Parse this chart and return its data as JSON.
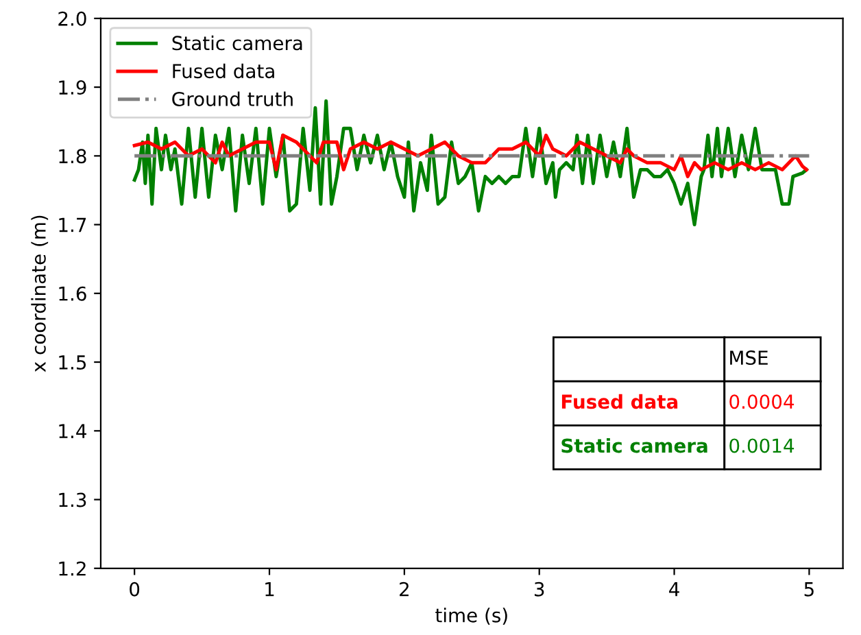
{
  "chart_data": {
    "type": "line",
    "xlabel": "time (s)",
    "ylabel": "x coordinate (m)",
    "xlim": [
      -0.25,
      5.25
    ],
    "ylim": [
      1.2,
      2.0
    ],
    "xticks": [
      0,
      1,
      2,
      3,
      4,
      5
    ],
    "yticks": [
      {
        "value": 1.2,
        "label": "1.2"
      },
      {
        "value": 1.3,
        "label": "1.3"
      },
      {
        "value": 1.4,
        "label": "1.4"
      },
      {
        "value": 1.5,
        "label": "1.5"
      },
      {
        "value": 1.6,
        "label": "1.6"
      },
      {
        "value": 1.7,
        "label": "1.7"
      },
      {
        "value": 1.8,
        "label": "1.8"
      },
      {
        "value": 1.9,
        "label": "1.9"
      },
      {
        "value": 2.0,
        "label": "2.0"
      }
    ],
    "grid": false,
    "legend": "top left",
    "marker": "none",
    "series": [
      {
        "name": "Static camera",
        "color": "#008000",
        "line_style": "solid",
        "x": [
          0,
          0.03,
          0.06,
          0.08,
          0.1,
          0.13,
          0.16,
          0.2,
          0.23,
          0.27,
          0.3,
          0.35,
          0.4,
          0.45,
          0.5,
          0.55,
          0.6,
          0.65,
          0.7,
          0.75,
          0.8,
          0.85,
          0.9,
          0.95,
          1.0,
          1.05,
          1.1,
          1.15,
          1.2,
          1.25,
          1.3,
          1.34,
          1.38,
          1.42,
          1.46,
          1.5,
          1.55,
          1.6,
          1.65,
          1.7,
          1.75,
          1.8,
          1.85,
          1.9,
          1.95,
          2.0,
          2.03,
          2.07,
          2.12,
          2.17,
          2.2,
          2.25,
          2.3,
          2.35,
          2.4,
          2.45,
          2.5,
          2.55,
          2.6,
          2.65,
          2.7,
          2.75,
          2.8,
          2.85,
          2.9,
          2.95,
          3.0,
          3.05,
          3.1,
          3.12,
          3.15,
          3.2,
          3.25,
          3.28,
          3.32,
          3.36,
          3.4,
          3.45,
          3.5,
          3.55,
          3.6,
          3.65,
          3.7,
          3.75,
          3.8,
          3.85,
          3.9,
          3.95,
          4.0,
          4.05,
          4.1,
          4.15,
          4.2,
          4.22,
          4.25,
          4.28,
          4.32,
          4.35,
          4.4,
          4.45,
          4.5,
          4.55,
          4.6,
          4.65,
          4.7,
          4.75,
          4.8,
          4.85,
          4.88,
          4.95,
          4.98
        ],
        "values": [
          1.765,
          1.78,
          1.82,
          1.76,
          1.83,
          1.73,
          1.84,
          1.78,
          1.83,
          1.78,
          1.81,
          1.73,
          1.84,
          1.74,
          1.84,
          1.74,
          1.83,
          1.78,
          1.84,
          1.72,
          1.83,
          1.76,
          1.84,
          1.73,
          1.84,
          1.77,
          1.83,
          1.72,
          1.73,
          1.84,
          1.75,
          1.87,
          1.73,
          1.88,
          1.73,
          1.77,
          1.84,
          1.84,
          1.78,
          1.83,
          1.79,
          1.83,
          1.78,
          1.82,
          1.77,
          1.74,
          1.82,
          1.72,
          1.79,
          1.75,
          1.83,
          1.73,
          1.74,
          1.82,
          1.76,
          1.77,
          1.79,
          1.72,
          1.77,
          1.76,
          1.77,
          1.76,
          1.77,
          1.77,
          1.84,
          1.77,
          1.84,
          1.76,
          1.79,
          1.74,
          1.78,
          1.79,
          1.78,
          1.83,
          1.76,
          1.83,
          1.76,
          1.83,
          1.77,
          1.82,
          1.77,
          1.84,
          1.74,
          1.78,
          1.78,
          1.77,
          1.77,
          1.78,
          1.76,
          1.73,
          1.76,
          1.7,
          1.77,
          1.78,
          1.83,
          1.77,
          1.84,
          1.77,
          1.84,
          1.77,
          1.83,
          1.78,
          1.84,
          1.78,
          1.78,
          1.78,
          1.73,
          1.73,
          1.77,
          1.775,
          1.78
        ]
      },
      {
        "name": "Fused data",
        "color": "#ff0000",
        "line_style": "solid",
        "x": [
          0,
          0.1,
          0.2,
          0.3,
          0.4,
          0.5,
          0.6,
          0.65,
          0.7,
          0.8,
          0.9,
          1.0,
          1.05,
          1.1,
          1.2,
          1.3,
          1.35,
          1.4,
          1.5,
          1.55,
          1.6,
          1.7,
          1.8,
          1.9,
          2.0,
          2.1,
          2.2,
          2.3,
          2.4,
          2.5,
          2.6,
          2.7,
          2.8,
          2.9,
          3.0,
          3.05,
          3.1,
          3.2,
          3.3,
          3.4,
          3.5,
          3.6,
          3.65,
          3.7,
          3.8,
          3.9,
          4.0,
          4.05,
          4.1,
          4.15,
          4.2,
          4.3,
          4.4,
          4.5,
          4.6,
          4.7,
          4.8,
          4.9,
          4.95,
          4.98
        ],
        "values": [
          1.815,
          1.82,
          1.81,
          1.82,
          1.8,
          1.81,
          1.79,
          1.82,
          1.8,
          1.81,
          1.82,
          1.82,
          1.78,
          1.83,
          1.82,
          1.8,
          1.79,
          1.82,
          1.82,
          1.78,
          1.81,
          1.82,
          1.81,
          1.82,
          1.81,
          1.8,
          1.81,
          1.82,
          1.8,
          1.79,
          1.79,
          1.81,
          1.81,
          1.82,
          1.8,
          1.83,
          1.81,
          1.8,
          1.82,
          1.81,
          1.8,
          1.79,
          1.81,
          1.8,
          1.79,
          1.79,
          1.78,
          1.8,
          1.77,
          1.79,
          1.78,
          1.79,
          1.78,
          1.79,
          1.78,
          1.79,
          1.78,
          1.8,
          1.785,
          1.78
        ]
      },
      {
        "name": "Ground truth",
        "color": "#808080",
        "line_style": "dashdot",
        "x": [
          0,
          5
        ],
        "values": [
          1.8,
          1.8
        ]
      }
    ],
    "annotations": [
      "MSE",
      "Fused data",
      "0.0004",
      "Static camera",
      "0.0014"
    ]
  }
}
